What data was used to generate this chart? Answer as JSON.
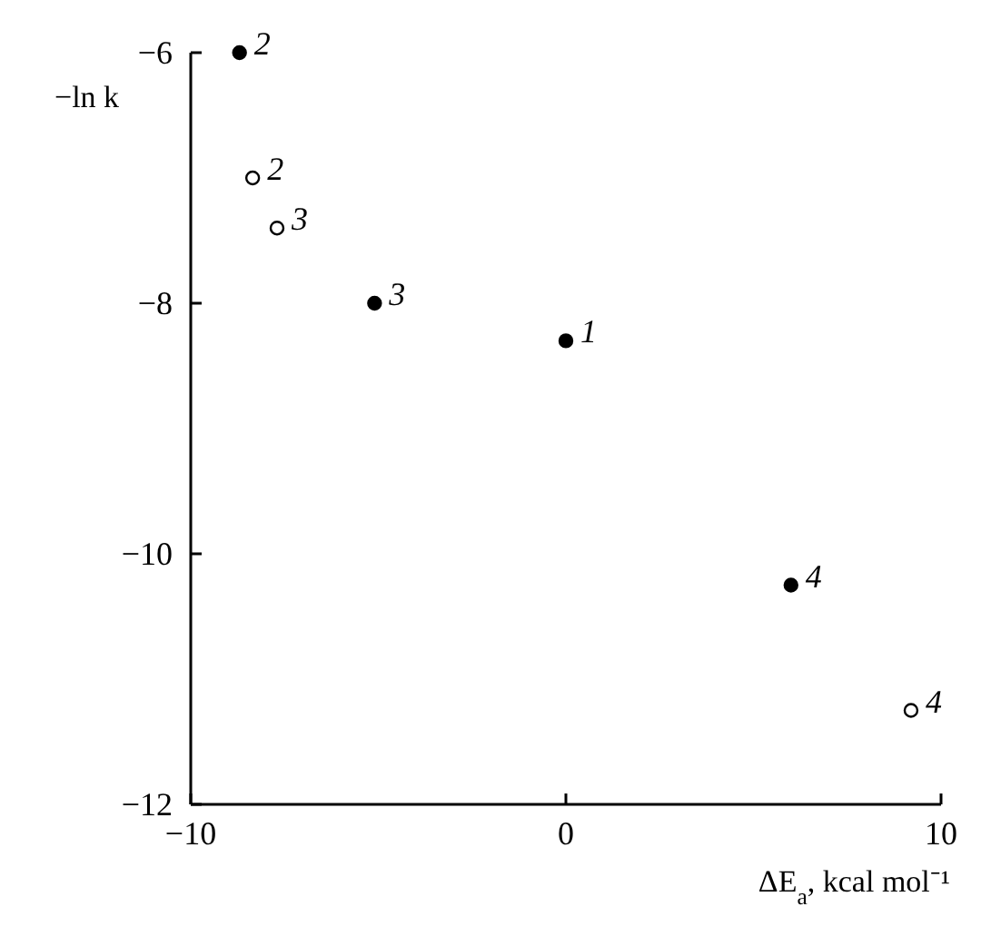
{
  "chart_data": {
    "type": "scatter",
    "xlabel": "ΔE$_{a}$, kcal mol⁻¹",
    "ylabel": "−ln k",
    "series": [
      {
        "color": "#000000",
        "x": [
          -8.7,
          -5.1,
          0,
          6.0
        ],
        "values": [
          -6.0,
          -8.0,
          -8.3,
          -10.25
        ]
      },
      {
        "color": "#ffffff",
        "x": [
          -8.35,
          -7.7,
          9.2
        ],
        "values": [
          -7.0,
          -7.4,
          -11.25
        ]
      }
    ],
    "xlim": [
      -10,
      10
    ],
    "ylim": [
      -12,
      -6
    ],
    "xticks": [
      {
        "value": -10,
        "label": "−10"
      },
      0,
      10
    ],
    "yticks": [
      {
        "value": -6,
        "label": "−6"
      },
      {
        "value": -8,
        "label": "−8"
      },
      {
        "value": -10,
        "label": "−10"
      },
      {
        "value": -12,
        "label": "−12"
      }
    ],
    "marker": "circle",
    "grid": false,
    "annotations": [
      {
        "text": "2",
        "x": -8.7,
        "y": -6.0
      },
      {
        "text": "2",
        "x": -8.35,
        "y": -7.0
      },
      {
        "text": "3",
        "x": -7.7,
        "y": -7.4
      },
      {
        "text": "3",
        "x": -5.1,
        "y": -8.0
      },
      {
        "text": "1",
        "x": 0,
        "y": -8.3
      },
      {
        "text": "4",
        "x": 6.0,
        "y": -10.25
      },
      {
        "text": "4",
        "x": 9.2,
        "y": -11.25
      }
    ]
  }
}
